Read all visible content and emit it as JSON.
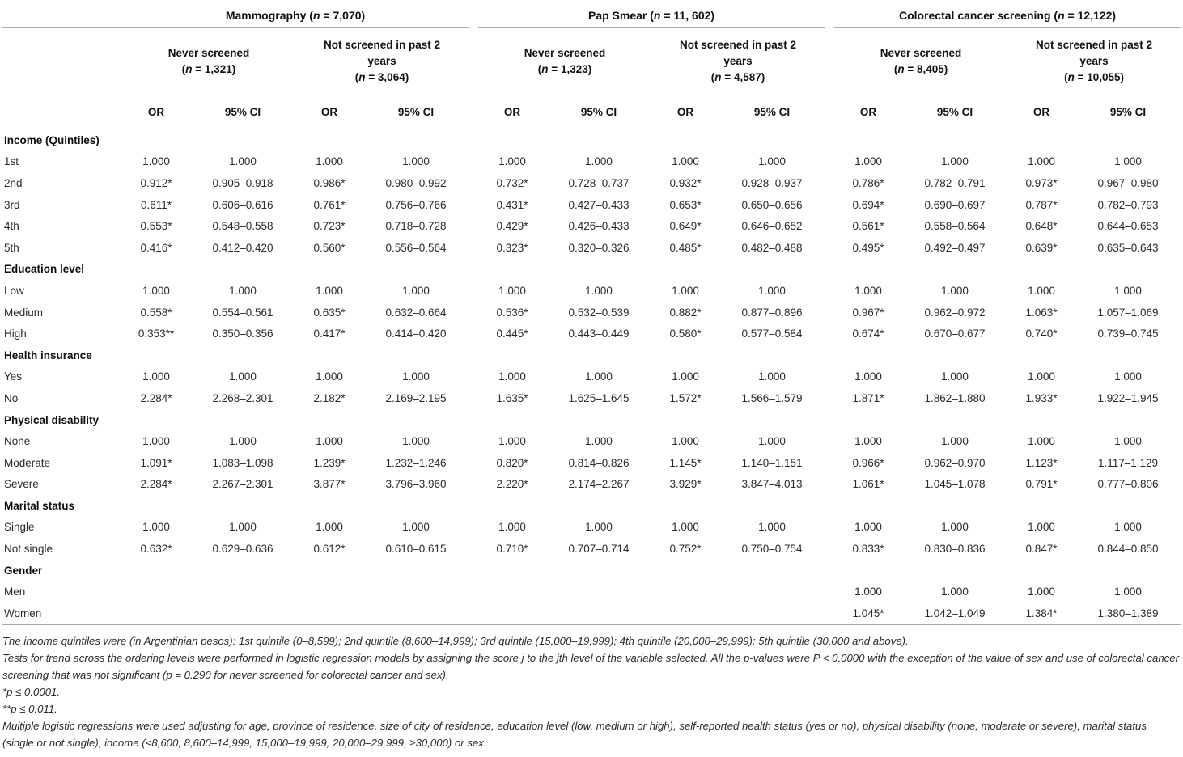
{
  "table": {
    "n_format": {
      "sp_open": " (",
      "open": "(",
      "n": "n",
      "eq": " = ",
      "close": ")"
    },
    "col_groups": [
      {
        "label": "Mammography",
        "count": "7,070",
        "subgroups": [
          {
            "label": "Never screened",
            "count": "1,321"
          },
          {
            "label": "Not screened in past 2 years",
            "count": "3,064"
          }
        ]
      },
      {
        "label": "Pap Smear",
        "count": "11, 602",
        "subgroups": [
          {
            "label": "Never screened",
            "count": "1,323"
          },
          {
            "label": "Not screened in past 2 years",
            "count": "4,587"
          }
        ]
      },
      {
        "label": "Colorectal cancer screening",
        "count": "12,122",
        "subgroups": [
          {
            "label": "Never screened",
            "count": "8,405"
          },
          {
            "label": "Not screened in past 2 years",
            "count": "10,055"
          }
        ]
      }
    ],
    "measure_headers": [
      "OR",
      "95% CI"
    ],
    "rows": [
      {
        "type": "section",
        "label": "Income (Quintiles)"
      },
      {
        "type": "data",
        "label": "1st",
        "values": [
          "1.000",
          "1.000",
          "1.000",
          "1.000",
          "1.000",
          "1.000",
          "1.000",
          "1.000",
          "1.000",
          "1.000",
          "1.000",
          "1.000"
        ]
      },
      {
        "type": "data",
        "label": "2nd",
        "values": [
          "0.912*",
          "0.905–0.918",
          "0.986*",
          "0.980–0.992",
          "0.732*",
          "0.728–0.737",
          "0.932*",
          "0.928–0.937",
          "0.786*",
          "0.782–0.791",
          "0.973*",
          "0.967–0.980"
        ]
      },
      {
        "type": "data",
        "label": "3rd",
        "values": [
          "0.611*",
          "0.606–0.616",
          "0.761*",
          "0.756–0.766",
          "0.431*",
          "0.427–0.433",
          "0.653*",
          "0.650–0.656",
          "0.694*",
          "0.690–0.697",
          "0.787*",
          "0.782–0.793"
        ]
      },
      {
        "type": "data",
        "label": "4th",
        "values": [
          "0.553*",
          "0.548–0.558",
          "0.723*",
          "0.718–0.728",
          "0.429*",
          "0.426–0.433",
          "0.649*",
          "0.646–0.652",
          "0.561*",
          "0.558–0.564",
          "0.648*",
          "0.644–0.653"
        ]
      },
      {
        "type": "data",
        "label": "5th",
        "values": [
          "0.416*",
          "0.412–0.420",
          "0.560*",
          "0.556–0.564",
          "0.323*",
          "0.320–0.326",
          "0.485*",
          "0.482–0.488",
          "0.495*",
          "0.492–0.497",
          "0.639*",
          "0.635–0.643"
        ]
      },
      {
        "type": "section",
        "label": "Education level"
      },
      {
        "type": "data",
        "label": "Low",
        "values": [
          "1.000",
          "1.000",
          "1.000",
          "1.000",
          "1.000",
          "1.000",
          "1.000",
          "1.000",
          "1.000",
          "1.000",
          "1.000",
          "1.000"
        ]
      },
      {
        "type": "data",
        "label": "Medium",
        "values": [
          "0.558*",
          "0.554–0.561",
          "0.635*",
          "0.632–0.664",
          "0.536*",
          "0.532–0.539",
          "0.882*",
          "0.877–0.896",
          "0.967*",
          "0.962–0.972",
          "1.063*",
          "1.057–1.069"
        ]
      },
      {
        "type": "data",
        "label": "High",
        "values": [
          "0.353**",
          "0.350–0.356",
          "0.417*",
          "0.414–0.420",
          "0.445*",
          "0.443–0.449",
          "0.580*",
          "0.577–0.584",
          "0.674*",
          "0.670–0.677",
          "0.740*",
          "0.739–0.745"
        ]
      },
      {
        "type": "section",
        "label": "Health insurance"
      },
      {
        "type": "data",
        "label": "Yes",
        "values": [
          "1.000",
          "1.000",
          "1.000",
          "1.000",
          "1.000",
          "1.000",
          "1.000",
          "1.000",
          "1.000",
          "1.000",
          "1.000",
          "1.000"
        ]
      },
      {
        "type": "data",
        "label": "No",
        "values": [
          "2.284*",
          "2.268–2.301",
          "2.182*",
          "2.169–2.195",
          "1.635*",
          "1.625–1.645",
          "1.572*",
          "1.566–1.579",
          "1.871*",
          "1.862–1.880",
          "1.933*",
          "1.922–1.945"
        ]
      },
      {
        "type": "section",
        "label": "Physical disability"
      },
      {
        "type": "data",
        "label": "None",
        "values": [
          "1.000",
          "1.000",
          "1.000",
          "1.000",
          "1.000",
          "1.000",
          "1.000",
          "1.000",
          "1.000",
          "1.000",
          "1.000",
          "1.000"
        ]
      },
      {
        "type": "data",
        "label": "Moderate",
        "values": [
          "1.091*",
          "1.083–1.098",
          "1.239*",
          "1.232–1.246",
          "0.820*",
          "0.814–0.826",
          "1.145*",
          "1.140–1.151",
          "0.966*",
          "0.962–0.970",
          "1.123*",
          "1.117–1.129"
        ]
      },
      {
        "type": "data",
        "label": "Severe",
        "values": [
          "2.284*",
          "2.267–2.301",
          "3.877*",
          "3.796–3.960",
          "2.220*",
          "2.174–2.267",
          "3.929*",
          "3.847–4.013",
          "1.061*",
          "1.045–1.078",
          "0.791*",
          "0.777–0.806"
        ]
      },
      {
        "type": "section",
        "label": "Marital status"
      },
      {
        "type": "data",
        "label": "Single",
        "values": [
          "1.000",
          "1.000",
          "1.000",
          "1.000",
          "1.000",
          "1.000",
          "1.000",
          "1.000",
          "1.000",
          "1.000",
          "1.000",
          "1.000"
        ]
      },
      {
        "type": "data",
        "label": "Not single",
        "values": [
          "0.632*",
          "0.629–0.636",
          "0.612*",
          "0.610–0.615",
          "0.710*",
          "0.707–0.714",
          "0.752*",
          "0.750–0.754",
          "0.833*",
          "0.830–0.836",
          "0.847*",
          "0.844–0.850"
        ]
      },
      {
        "type": "section",
        "label": "Gender"
      },
      {
        "type": "data",
        "label": "Men",
        "values": [
          "",
          "",
          "",
          "",
          "",
          "",
          "",
          "",
          "1.000",
          "1.000",
          "1.000",
          "1.000"
        ]
      },
      {
        "type": "data",
        "label": "Women",
        "values": [
          "",
          "",
          "",
          "",
          "",
          "",
          "",
          "",
          "1.045*",
          "1.042–1.049",
          "1.384*",
          "1.380–1.389"
        ]
      }
    ]
  },
  "footnotes": [
    "The income quintiles were (in Argentinian pesos): 1st quintile (0–8,599); 2nd quintile (8,600–14,999); 3rd quintile (15,000–19,999); 4th quintile (20,000–29,999); 5th quintile (30,000 and above).",
    "Tests for trend across the ordering levels were performed in logistic regression models by assigning the score j to the jth level of the variable selected. All the p-values were P < 0.0000 with the exception of the value of sex and use of colorectal cancer screening that was not significant (p = 0.290 for never screened for colorectal cancer and sex).",
    "*p ≤ 0.0001.",
    "**p ≤ 0.011.",
    "Multiple logistic regressions were used adjusting for age, province of residence, size of city of residence, education level (low, medium or high), self-reported health status (yes or no), physical disability (none, moderate or severe), marital status (single or not single), income (<8,600, 8,600–14,999, 15,000–19,999, 20,000–29,999, ≥30,000) or sex."
  ]
}
